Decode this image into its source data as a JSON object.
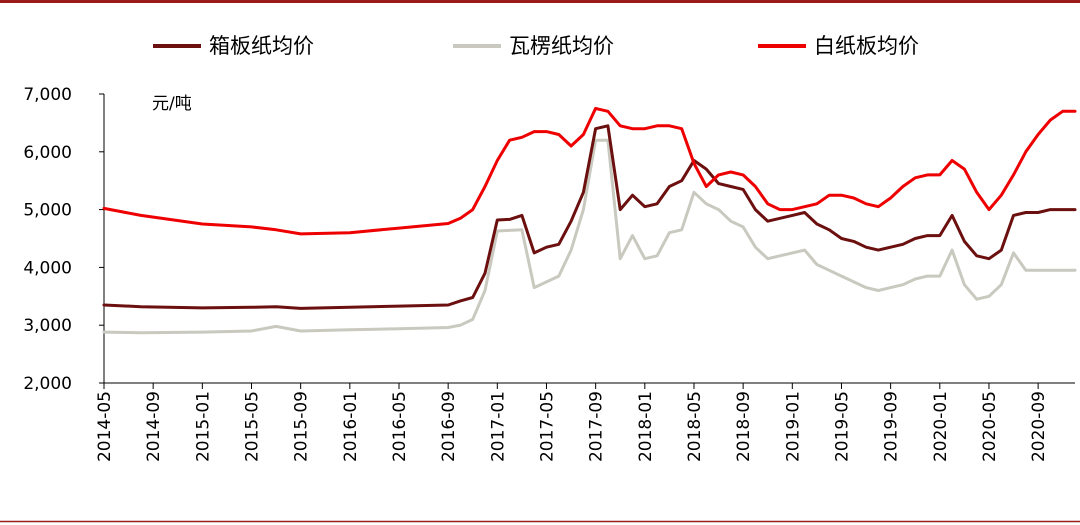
{
  "chart_data": {
    "type": "line",
    "title": "",
    "xlabel": "",
    "ylabel": "",
    "unit_label": "元/吨",
    "ylim": [
      2000,
      7000
    ],
    "yticks": [
      2000,
      3000,
      4000,
      5000,
      6000,
      7000
    ],
    "ytick_labels": [
      "2,000",
      "3,000",
      "4,000",
      "5,000",
      "6,000",
      "7,000"
    ],
    "xlim": [
      "2014-05",
      "2020-12"
    ],
    "xtick_labels": [
      "2014-05",
      "2014-09",
      "2015-01",
      "2015-05",
      "2015-09",
      "2016-01",
      "2016-05",
      "2016-09",
      "2017-01",
      "2017-05",
      "2017-09",
      "2018-01",
      "2018-05",
      "2018-09",
      "2019-01",
      "2019-05",
      "2019-09",
      "2020-01",
      "2020-05",
      "2020-09"
    ],
    "grid": false,
    "legend_position": "top",
    "colors": {
      "frame": "#9b1b1b",
      "axis": "#000000",
      "series_box": "#6b0f0f",
      "series_corrugated": "#c9c9c0",
      "series_white": "#ee0000"
    },
    "series": [
      {
        "name": "箱板纸均价",
        "color": "#6b0f0f",
        "points": [
          [
            "2014-05",
            3350
          ],
          [
            "2014-08",
            3320
          ],
          [
            "2015-01",
            3300
          ],
          [
            "2015-05",
            3310
          ],
          [
            "2015-07",
            3320
          ],
          [
            "2015-09",
            3290
          ],
          [
            "2016-01",
            3310
          ],
          [
            "2016-05",
            3330
          ],
          [
            "2016-09",
            3350
          ],
          [
            "2016-10",
            3420
          ],
          [
            "2016-11",
            3480
          ],
          [
            "2016-12",
            3900
          ],
          [
            "2017-01",
            4820
          ],
          [
            "2017-02",
            4830
          ],
          [
            "2017-03",
            4900
          ],
          [
            "2017-04",
            4250
          ],
          [
            "2017-05",
            4350
          ],
          [
            "2017-06",
            4400
          ],
          [
            "2017-07",
            4800
          ],
          [
            "2017-08",
            5300
          ],
          [
            "2017-09",
            6400
          ],
          [
            "2017-10",
            6450
          ],
          [
            "2017-11",
            5000
          ],
          [
            "2017-12",
            5250
          ],
          [
            "2018-01",
            5050
          ],
          [
            "2018-02",
            5100
          ],
          [
            "2018-03",
            5400
          ],
          [
            "2018-04",
            5500
          ],
          [
            "2018-05",
            5850
          ],
          [
            "2018-06",
            5700
          ],
          [
            "2018-07",
            5450
          ],
          [
            "2018-08",
            5400
          ],
          [
            "2018-09",
            5350
          ],
          [
            "2018-10",
            5000
          ],
          [
            "2018-11",
            4800
          ],
          [
            "2018-12",
            4850
          ],
          [
            "2019-01",
            4900
          ],
          [
            "2019-02",
            4950
          ],
          [
            "2019-03",
            4750
          ],
          [
            "2019-04",
            4650
          ],
          [
            "2019-05",
            4500
          ],
          [
            "2019-06",
            4450
          ],
          [
            "2019-07",
            4350
          ],
          [
            "2019-08",
            4300
          ],
          [
            "2019-09",
            4350
          ],
          [
            "2019-10",
            4400
          ],
          [
            "2019-11",
            4500
          ],
          [
            "2019-12",
            4550
          ],
          [
            "2020-01",
            4550
          ],
          [
            "2020-02",
            4900
          ],
          [
            "2020-03",
            4450
          ],
          [
            "2020-04",
            4200
          ],
          [
            "2020-05",
            4150
          ],
          [
            "2020-06",
            4300
          ],
          [
            "2020-07",
            4900
          ],
          [
            "2020-08",
            4950
          ],
          [
            "2020-09",
            4950
          ],
          [
            "2020-10",
            5000
          ],
          [
            "2020-11",
            5000
          ],
          [
            "2020-12",
            5000
          ]
        ]
      },
      {
        "name": "瓦楞纸均价",
        "color": "#c9c9c0",
        "points": [
          [
            "2014-05",
            2880
          ],
          [
            "2014-08",
            2870
          ],
          [
            "2015-01",
            2880
          ],
          [
            "2015-05",
            2900
          ],
          [
            "2015-07",
            2980
          ],
          [
            "2015-09",
            2900
          ],
          [
            "2016-01",
            2920
          ],
          [
            "2016-05",
            2940
          ],
          [
            "2016-09",
            2960
          ],
          [
            "2016-10",
            3000
          ],
          [
            "2016-11",
            3100
          ],
          [
            "2016-12",
            3600
          ],
          [
            "2017-01",
            4630
          ],
          [
            "2017-02",
            4640
          ],
          [
            "2017-03",
            4650
          ],
          [
            "2017-04",
            3650
          ],
          [
            "2017-05",
            3750
          ],
          [
            "2017-06",
            3850
          ],
          [
            "2017-07",
            4300
          ],
          [
            "2017-08",
            5000
          ],
          [
            "2017-09",
            6200
          ],
          [
            "2017-10",
            6200
          ],
          [
            "2017-11",
            4150
          ],
          [
            "2017-12",
            4550
          ],
          [
            "2018-01",
            4150
          ],
          [
            "2018-02",
            4200
          ],
          [
            "2018-03",
            4600
          ],
          [
            "2018-04",
            4650
          ],
          [
            "2018-05",
            5300
          ],
          [
            "2018-06",
            5100
          ],
          [
            "2018-07",
            5000
          ],
          [
            "2018-08",
            4800
          ],
          [
            "2018-09",
            4700
          ],
          [
            "2018-10",
            4350
          ],
          [
            "2018-11",
            4150
          ],
          [
            "2018-12",
            4200
          ],
          [
            "2019-01",
            4250
          ],
          [
            "2019-02",
            4300
          ],
          [
            "2019-03",
            4050
          ],
          [
            "2019-04",
            3950
          ],
          [
            "2019-05",
            3850
          ],
          [
            "2019-06",
            3750
          ],
          [
            "2019-07",
            3650
          ],
          [
            "2019-08",
            3600
          ],
          [
            "2019-09",
            3650
          ],
          [
            "2019-10",
            3700
          ],
          [
            "2019-11",
            3800
          ],
          [
            "2019-12",
            3850
          ],
          [
            "2020-01",
            3850
          ],
          [
            "2020-02",
            4300
          ],
          [
            "2020-03",
            3700
          ],
          [
            "2020-04",
            3450
          ],
          [
            "2020-05",
            3500
          ],
          [
            "2020-06",
            3700
          ],
          [
            "2020-07",
            4250
          ],
          [
            "2020-08",
            3950
          ],
          [
            "2020-09",
            3950
          ],
          [
            "2020-10",
            3950
          ],
          [
            "2020-11",
            3950
          ],
          [
            "2020-12",
            3950
          ]
        ]
      },
      {
        "name": "白纸板均价",
        "color": "#ee0000",
        "points": [
          [
            "2014-05",
            5020
          ],
          [
            "2014-08",
            4900
          ],
          [
            "2015-01",
            4750
          ],
          [
            "2015-05",
            4700
          ],
          [
            "2015-07",
            4650
          ],
          [
            "2015-09",
            4580
          ],
          [
            "2016-01",
            4600
          ],
          [
            "2016-05",
            4680
          ],
          [
            "2016-09",
            4760
          ],
          [
            "2016-10",
            4850
          ],
          [
            "2016-11",
            5000
          ],
          [
            "2016-12",
            5400
          ],
          [
            "2017-01",
            5850
          ],
          [
            "2017-02",
            6200
          ],
          [
            "2017-03",
            6250
          ],
          [
            "2017-04",
            6350
          ],
          [
            "2017-05",
            6350
          ],
          [
            "2017-06",
            6300
          ],
          [
            "2017-07",
            6100
          ],
          [
            "2017-08",
            6300
          ],
          [
            "2017-09",
            6750
          ],
          [
            "2017-10",
            6700
          ],
          [
            "2017-11",
            6450
          ],
          [
            "2017-12",
            6400
          ],
          [
            "2018-01",
            6400
          ],
          [
            "2018-02",
            6450
          ],
          [
            "2018-03",
            6450
          ],
          [
            "2018-04",
            6400
          ],
          [
            "2018-05",
            5800
          ],
          [
            "2018-06",
            5400
          ],
          [
            "2018-07",
            5600
          ],
          [
            "2018-08",
            5650
          ],
          [
            "2018-09",
            5600
          ],
          [
            "2018-10",
            5400
          ],
          [
            "2018-11",
            5100
          ],
          [
            "2018-12",
            5000
          ],
          [
            "2019-01",
            5000
          ],
          [
            "2019-02",
            5050
          ],
          [
            "2019-03",
            5100
          ],
          [
            "2019-04",
            5250
          ],
          [
            "2019-05",
            5250
          ],
          [
            "2019-06",
            5200
          ],
          [
            "2019-07",
            5100
          ],
          [
            "2019-08",
            5050
          ],
          [
            "2019-09",
            5200
          ],
          [
            "2019-10",
            5400
          ],
          [
            "2019-11",
            5550
          ],
          [
            "2019-12",
            5600
          ],
          [
            "2020-01",
            5600
          ],
          [
            "2020-02",
            5850
          ],
          [
            "2020-03",
            5700
          ],
          [
            "2020-04",
            5300
          ],
          [
            "2020-05",
            5000
          ],
          [
            "2020-06",
            5250
          ],
          [
            "2020-07",
            5600
          ],
          [
            "2020-08",
            6000
          ],
          [
            "2020-09",
            6300
          ],
          [
            "2020-10",
            6550
          ],
          [
            "2020-11",
            6700
          ],
          [
            "2020-12",
            6700
          ]
        ]
      }
    ]
  }
}
